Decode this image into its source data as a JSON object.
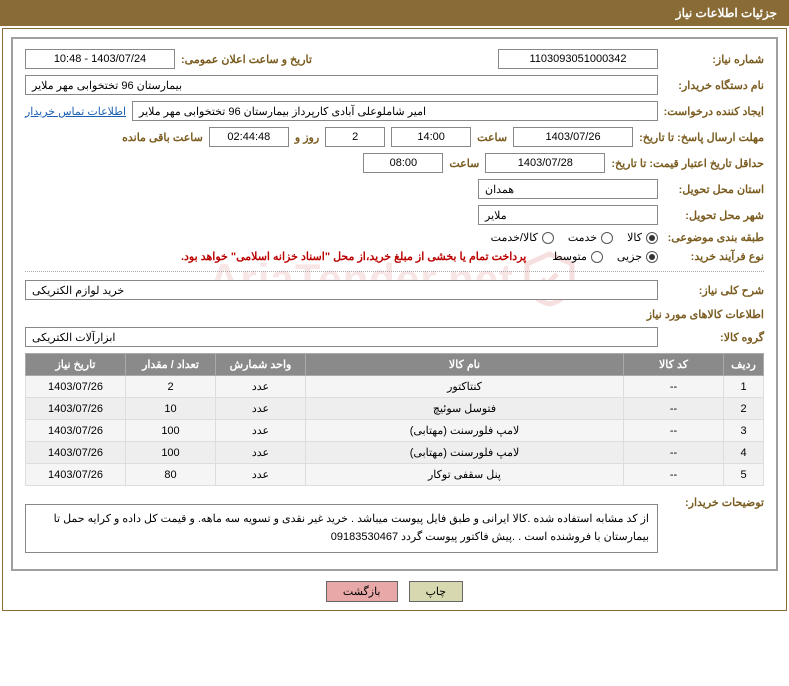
{
  "header": {
    "title": "جزئیات اطلاعات نیاز"
  },
  "fields": {
    "need_no_label": "شماره نیاز:",
    "need_no": "1103093051000342",
    "announce_label": "تاریخ و ساعت اعلان عمومی:",
    "announce": "1403/07/24 - 10:48",
    "buyer_org_label": "نام دستگاه خریدار:",
    "buyer_org": "بیمارستان 96 تختخوابی مهر ملایر",
    "requester_label": "ایجاد کننده درخواست:",
    "requester": "امیر شاملوعلی آبادی کارپرداز بیمارستان 96 تختخوابی مهر ملایر",
    "contact_link": "اطلاعات تماس خریدار",
    "deadline_label": "مهلت ارسال پاسخ: تا تاریخ:",
    "deadline_date": "1403/07/26",
    "time_label": "ساعت",
    "deadline_time": "14:00",
    "days": "2",
    "days_label": "روز و",
    "remain_time": "02:44:48",
    "remain_label": "ساعت باقی مانده",
    "validity_label": "حداقل تاریخ اعتبار قیمت: تا تاریخ:",
    "validity_date": "1403/07/28",
    "validity_time": "08:00",
    "province_label": "استان محل تحویل:",
    "province": "همدان",
    "city_label": "شهر محل تحویل:",
    "city": "ملایر",
    "category_label": "طبقه بندی موضوعی:",
    "cat1": "کالا",
    "cat2": "خدمت",
    "cat3": "کالا/خدمت",
    "purchase_type_label": "نوع فرآیند خرید:",
    "pt1": "جزیی",
    "pt2": "متوسط",
    "payment_note": "پرداخت تمام یا بخشی از مبلغ خرید،از محل \"اسناد خزانه اسلامی\" خواهد بود.",
    "overall_label": "شرح کلی نیاز:",
    "overall": "خرید لوازم الکتریکی",
    "items_title": "اطلاعات کالاهای مورد نیاز",
    "group_label": "گروه کالا:",
    "group": "ابزارآلات الکتریکی",
    "desc_label": "توضیحات خریدار:",
    "desc": "از کد مشابه استفاده شده .کالا ایرانی و طبق فایل پیوست میباشد . خرید غیر نقدی و تسویه سه ماهه. و قیمت کل داده و کرایه حمل تا بیمارستان با فروشنده است . .پیش فاکتور پیوست گردد 09183530467"
  },
  "table": {
    "headers": [
      "ردیف",
      "کد کالا",
      "نام کالا",
      "واحد شمارش",
      "تعداد / مقدار",
      "تاریخ نیاز"
    ],
    "rows": [
      [
        "1",
        "--",
        "کنتاکتور",
        "عدد",
        "2",
        "1403/07/26"
      ],
      [
        "2",
        "--",
        "فتوسل سوئیچ",
        "عدد",
        "10",
        "1403/07/26"
      ],
      [
        "3",
        "--",
        "لامپ فلورسنت (مهتابی)",
        "عدد",
        "100",
        "1403/07/26"
      ],
      [
        "4",
        "--",
        "لامپ فلورسنت (مهتابی)",
        "عدد",
        "100",
        "1403/07/26"
      ],
      [
        "5",
        "--",
        "پنل سقفی توکار",
        "عدد",
        "80",
        "1403/07/26"
      ]
    ]
  },
  "buttons": {
    "print": "چاپ",
    "back": "بازگشت"
  },
  "watermark": "AriaTender.net",
  "colors": {
    "header_bg": "#886b35",
    "label": "#7a5c20",
    "th_bg": "#8a8a8a",
    "note": "#b00000"
  }
}
